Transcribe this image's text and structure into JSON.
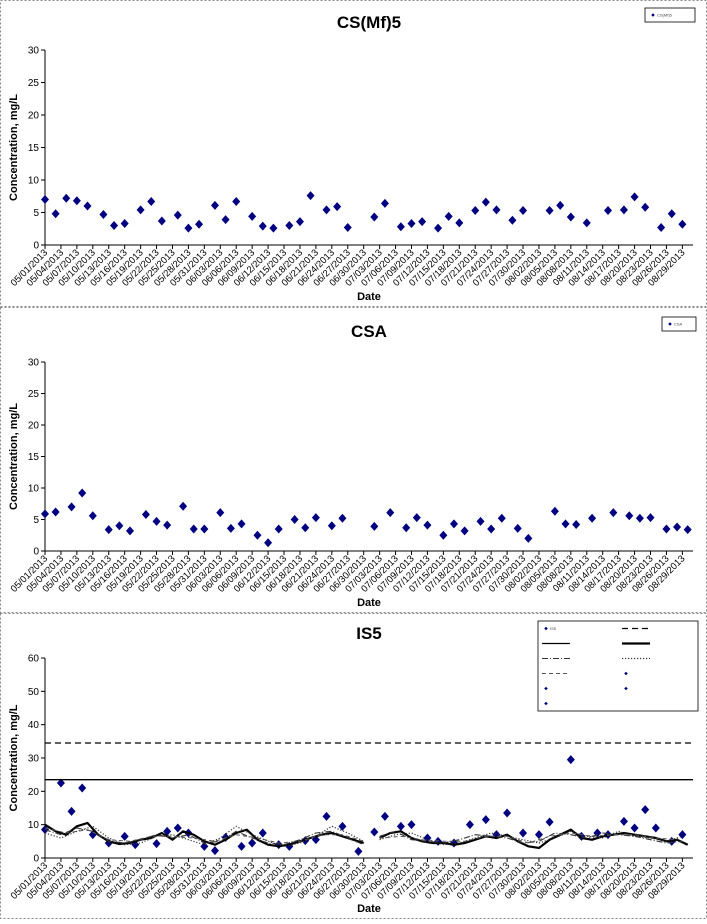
{
  "chart_data": [
    {
      "type": "scatter",
      "title": "CS(Mf)5",
      "xlabel": "Date",
      "ylabel": "Concentration, mg/L",
      "ylim": [
        0,
        30
      ],
      "yticks": [
        0,
        5,
        10,
        15,
        20,
        25,
        30
      ],
      "xlim": [
        "05/01/2013",
        "08/31/2013"
      ],
      "xticks": [
        "05/01/2013",
        "05/04/2013",
        "05/07/2013",
        "05/10/2013",
        "05/13/2013",
        "05/16/2013",
        "05/19/2013",
        "05/22/2013",
        "05/25/2013",
        "05/28/2013",
        "05/31/2013",
        "06/03/2013",
        "06/06/2013",
        "06/09/2013",
        "06/12/2013",
        "06/15/2013",
        "06/18/2013",
        "06/21/2013",
        "06/24/2013",
        "06/27/2013",
        "06/30/2013",
        "07/03/2013",
        "07/06/2013",
        "07/09/2013",
        "07/12/2013",
        "07/15/2013",
        "07/18/2013",
        "07/21/2013",
        "07/24/2013",
        "07/27/2013",
        "07/30/2013",
        "08/02/2013",
        "08/05/2013",
        "08/08/2013",
        "08/11/2013",
        "08/14/2013",
        "08/17/2013",
        "08/20/2013",
        "08/23/2013",
        "08/26/2013",
        "08/29/2013"
      ],
      "legend": {
        "position": "top-right",
        "entries": [
          "CS(Mf)5"
        ]
      },
      "series": [
        {
          "name": "CS(Mf)5",
          "marker": "diamond",
          "color": "#000080",
          "x": [
            "05/01/2013",
            "05/03/2013",
            "05/05/2013",
            "05/07/2013",
            "05/09/2013",
            "05/12/2013",
            "05/14/2013",
            "05/16/2013",
            "05/19/2013",
            "05/21/2013",
            "05/23/2013",
            "05/26/2013",
            "05/28/2013",
            "05/30/2013",
            "06/02/2013",
            "06/04/2013",
            "06/06/2013",
            "06/09/2013",
            "06/11/2013",
            "06/13/2013",
            "06/16/2013",
            "06/18/2013",
            "06/20/2013",
            "06/23/2013",
            "06/25/2013",
            "06/27/2013",
            "07/02/2013",
            "07/04/2013",
            "07/07/2013",
            "07/09/2013",
            "07/11/2013",
            "07/14/2013",
            "07/16/2013",
            "07/18/2013",
            "07/21/2013",
            "07/23/2013",
            "07/25/2013",
            "07/28/2013",
            "07/30/2013",
            "08/04/2013",
            "08/06/2013",
            "08/08/2013",
            "08/11/2013",
            "08/15/2013",
            "08/18/2013",
            "08/20/2013",
            "08/22/2013",
            "08/25/2013",
            "08/27/2013",
            "08/29/2013"
          ],
          "y": [
            7.0,
            4.8,
            7.2,
            6.8,
            6.0,
            4.7,
            3.0,
            3.3,
            5.4,
            6.7,
            3.7,
            4.6,
            2.6,
            3.2,
            6.1,
            3.9,
            6.7,
            4.4,
            2.9,
            2.6,
            3.0,
            3.6,
            7.6,
            5.4,
            5.9,
            2.7,
            4.3,
            6.4,
            2.8,
            3.3,
            3.6,
            2.6,
            4.4,
            3.4,
            5.3,
            6.6,
            5.4,
            3.8,
            5.3,
            5.3,
            6.1,
            4.3,
            3.4,
            5.3,
            5.4,
            7.4,
            5.8,
            2.7,
            4.8,
            3.2
          ]
        }
      ]
    },
    {
      "type": "scatter",
      "title": "CSA",
      "xlabel": "Date",
      "ylabel": "Concentration, mg/L",
      "ylim": [
        0,
        30
      ],
      "yticks": [
        0,
        5,
        10,
        15,
        20,
        25,
        30
      ],
      "xlim": [
        "05/01/2013",
        "08/31/2013"
      ],
      "xticks": [
        "05/01/2013",
        "05/04/2013",
        "05/07/2013",
        "05/10/2013",
        "05/13/2013",
        "05/16/2013",
        "05/19/2013",
        "05/22/2013",
        "05/25/2013",
        "05/28/2013",
        "05/31/2013",
        "06/03/2013",
        "06/06/2013",
        "06/09/2013",
        "06/12/2013",
        "06/15/2013",
        "06/18/2013",
        "06/21/2013",
        "06/24/2013",
        "06/27/2013",
        "06/30/2013",
        "07/03/2013",
        "07/06/2013",
        "07/09/2013",
        "07/12/2013",
        "07/15/2013",
        "07/18/2013",
        "07/21/2013",
        "07/24/2013",
        "07/27/2013",
        "07/30/2013",
        "08/02/2013",
        "08/05/2013",
        "08/08/2013",
        "08/11/2013",
        "08/14/2013",
        "08/17/2013",
        "08/20/2013",
        "08/23/2013",
        "08/26/2013",
        "08/29/2013"
      ],
      "legend": {
        "position": "top-right",
        "entries": [
          "CSA"
        ]
      },
      "series": [
        {
          "name": "CSA",
          "marker": "diamond",
          "color": "#000080",
          "x": [
            "05/01/2013",
            "05/03/2013",
            "05/06/2013",
            "05/08/2013",
            "05/10/2013",
            "05/13/2013",
            "05/15/2013",
            "05/17/2013",
            "05/20/2013",
            "05/22/2013",
            "05/24/2013",
            "05/27/2013",
            "05/29/2013",
            "05/31/2013",
            "06/03/2013",
            "06/05/2013",
            "06/07/2013",
            "06/10/2013",
            "06/12/2013",
            "06/14/2013",
            "06/17/2013",
            "06/19/2013",
            "06/21/2013",
            "06/24/2013",
            "06/26/2013",
            "07/02/2013",
            "07/05/2013",
            "07/08/2013",
            "07/10/2013",
            "07/12/2013",
            "07/15/2013",
            "07/17/2013",
            "07/19/2013",
            "07/22/2013",
            "07/24/2013",
            "07/26/2013",
            "07/29/2013",
            "07/31/2013",
            "08/05/2013",
            "08/07/2013",
            "08/09/2013",
            "08/12/2013",
            "08/16/2013",
            "08/19/2013",
            "08/21/2013",
            "08/23/2013",
            "08/26/2013",
            "08/28/2013",
            "08/30/2013"
          ],
          "y": [
            5.9,
            6.2,
            7.0,
            9.2,
            5.6,
            3.4,
            4.0,
            3.2,
            5.8,
            4.7,
            4.1,
            7.1,
            3.5,
            3.5,
            6.1,
            3.6,
            4.3,
            2.5,
            1.3,
            3.5,
            5.0,
            3.7,
            5.3,
            4.0,
            5.2,
            3.9,
            6.1,
            3.7,
            5.3,
            4.1,
            2.5,
            4.3,
            3.2,
            4.7,
            3.5,
            5.2,
            3.6,
            2.0,
            6.3,
            4.3,
            4.2,
            5.2,
            6.1,
            5.6,
            5.2,
            5.3,
            3.5,
            3.8,
            3.4
          ]
        }
      ]
    },
    {
      "type": "scatter",
      "title": "IS5",
      "xlabel": "Date",
      "ylabel": "Concentration, mg/L",
      "ylim": [
        0,
        60
      ],
      "yticks": [
        0,
        10,
        20,
        30,
        40,
        50,
        60
      ],
      "xlim": [
        "05/01/2013",
        "08/31/2013"
      ],
      "xticks": [
        "05/01/2013",
        "05/04/2013",
        "05/07/2013",
        "05/10/2013",
        "05/13/2013",
        "05/16/2013",
        "05/19/2013",
        "05/22/2013",
        "05/25/2013",
        "05/28/2013",
        "05/31/2013",
        "06/03/2013",
        "06/06/2013",
        "06/09/2013",
        "06/12/2013",
        "06/15/2013",
        "06/18/2013",
        "06/21/2013",
        "06/24/2013",
        "06/27/2013",
        "06/30/2013",
        "07/03/2013",
        "07/06/2013",
        "07/09/2013",
        "07/12/2013",
        "07/15/2013",
        "07/18/2013",
        "07/21/2013",
        "07/24/2013",
        "07/27/2013",
        "07/30/2013",
        "08/02/2013",
        "08/05/2013",
        "08/08/2013",
        "08/11/2013",
        "08/14/2013",
        "08/17/2013",
        "08/20/2013",
        "08/23/2013",
        "08/26/2013",
        "08/29/2013"
      ],
      "legend": {
        "position": "top-right",
        "columns": 2,
        "entries": [
          "IS5",
          "",
          "",
          "",
          "",
          "",
          "",
          "",
          "",
          "",
          ""
        ]
      },
      "series": [
        {
          "name": "IS5",
          "marker": "diamond",
          "color": "#000080",
          "x": [
            "05/01/2013",
            "05/04/2013",
            "05/06/2013",
            "05/08/2013",
            "05/10/2013",
            "05/13/2013",
            "05/16/2013",
            "05/18/2013",
            "05/22/2013",
            "05/24/2013",
            "05/26/2013",
            "05/28/2013",
            "05/31/2013",
            "06/02/2013",
            "06/04/2013",
            "06/07/2013",
            "06/09/2013",
            "06/11/2013",
            "06/14/2013",
            "06/16/2013",
            "06/19/2013",
            "06/21/2013",
            "06/23/2013",
            "06/26/2013",
            "06/29/2013",
            "07/02/2013",
            "07/04/2013",
            "07/07/2013",
            "07/09/2013",
            "07/12/2013",
            "07/14/2013",
            "07/17/2013",
            "07/20/2013",
            "07/23/2013",
            "07/25/2013",
            "07/27/2013",
            "07/30/2013",
            "08/02/2013",
            "08/04/2013",
            "08/08/2013",
            "08/10/2013",
            "08/13/2013",
            "08/15/2013",
            "08/18/2013",
            "08/20/2013",
            "08/22/2013",
            "08/24/2013",
            "08/27/2013",
            "08/29/2013"
          ],
          "y": [
            8.5,
            22.5,
            14.0,
            21.0,
            7.0,
            4.5,
            6.5,
            4.0,
            4.3,
            8.0,
            9.0,
            7.5,
            3.5,
            2.2,
            6.2,
            3.5,
            4.5,
            7.5,
            4.0,
            3.5,
            5.2,
            5.5,
            12.5,
            9.5,
            2.0,
            7.8,
            12.5,
            9.5,
            10.0,
            6.0,
            5.0,
            4.5,
            10.0,
            11.5,
            7.0,
            13.5,
            7.5,
            7.0,
            10.8,
            29.5,
            6.5,
            7.5,
            7.0,
            11.0,
            9.0,
            14.5,
            9.0,
            5.0,
            7.0
          ]
        },
        {
          "name": "",
          "style": "dashed",
          "color": "#000000",
          "constant": 34.5
        },
        {
          "name": "",
          "style": "solid",
          "color": "#000000",
          "constant": 23.5
        },
        {
          "name": "",
          "style": "solid-thick",
          "color": "#000000",
          "x": [
            "05/01/2013",
            "05/03/2013",
            "05/05/2013",
            "05/07/2013",
            "05/09/2013",
            "05/11/2013",
            "05/13/2013",
            "05/15/2013",
            "05/17/2013",
            "05/19/2013",
            "05/21/2013",
            "05/23/2013",
            "05/25/2013",
            "05/27/2013",
            "05/29/2013",
            "05/31/2013",
            "06/02/2013",
            "06/04/2013",
            "06/06/2013",
            "06/08/2013",
            "06/10/2013",
            "06/12/2013",
            "06/14/2013",
            "06/16/2013",
            "06/18/2013",
            "06/20/2013",
            "06/22/2013",
            "06/24/2013",
            "06/26/2013",
            "06/28/2013",
            "06/30/2013",
            null,
            "07/03/2013",
            "07/05/2013",
            "07/07/2013",
            "07/09/2013",
            "07/11/2013",
            "07/13/2013",
            "07/15/2013",
            "07/17/2013",
            "07/19/2013",
            "07/21/2013",
            "07/23/2013",
            "07/25/2013",
            "07/27/2013",
            "07/29/2013",
            "07/31/2013",
            "08/02/2013",
            "08/04/2013",
            "08/06/2013",
            "08/08/2013",
            "08/10/2013",
            "08/12/2013",
            "08/14/2013",
            "08/16/2013",
            "08/18/2013",
            "08/20/2013",
            "08/22/2013",
            "08/24/2013",
            "08/26/2013",
            "08/28/2013",
            "08/30/2013"
          ],
          "y": [
            10.0,
            8.0,
            7.0,
            9.5,
            10.5,
            7.0,
            5.0,
            4.2,
            4.5,
            5.5,
            6.0,
            7.5,
            5.5,
            8.0,
            7.0,
            5.0,
            4.0,
            5.5,
            7.5,
            8.5,
            5.5,
            4.0,
            3.5,
            4.0,
            5.0,
            6.0,
            7.0,
            7.5,
            6.5,
            5.5,
            4.5,
            null,
            6.0,
            7.5,
            8.0,
            6.0,
            5.0,
            4.5,
            4.5,
            4.0,
            4.5,
            5.5,
            6.5,
            6.0,
            7.0,
            5.0,
            3.5,
            3.0,
            5.5,
            7.0,
            8.5,
            6.0,
            5.5,
            6.5,
            7.0,
            7.5,
            7.0,
            6.5,
            6.0,
            5.0,
            5.5,
            4.0
          ]
        },
        {
          "name": "",
          "style": "dash-dot",
          "color": "#333333",
          "x": [
            "05/01/2013",
            "05/04/2013",
            "05/07/2013",
            "05/10/2013",
            "05/13/2013",
            "05/16/2013",
            "05/19/2013",
            "05/22/2013",
            "05/25/2013",
            "05/28/2013",
            "05/31/2013",
            "06/03/2013",
            "06/06/2013",
            "06/09/2013",
            "06/12/2013",
            "06/15/2013",
            "06/18/2013",
            "06/21/2013",
            "06/24/2013",
            "06/27/2013",
            "06/30/2013",
            null,
            "07/03/2013",
            "07/06/2013",
            "07/09/2013",
            "07/12/2013",
            "07/15/2013",
            "07/18/2013",
            "07/21/2013",
            "07/24/2013",
            "07/27/2013",
            "07/30/2013",
            "08/02/2013",
            "08/05/2013",
            "08/08/2013",
            "08/11/2013",
            "08/14/2013",
            "08/17/2013",
            "08/20/2013",
            "08/23/2013",
            "08/26/2013",
            "08/29/2013"
          ],
          "y": [
            8.5,
            7.0,
            9.0,
            8.0,
            5.0,
            4.5,
            5.5,
            7.0,
            6.0,
            7.0,
            4.5,
            5.0,
            8.0,
            6.0,
            4.5,
            4.0,
            5.5,
            7.5,
            8.0,
            6.0,
            4.0,
            null,
            6.5,
            8.0,
            5.5,
            5.0,
            4.5,
            5.5,
            7.0,
            6.5,
            6.0,
            4.5,
            5.0,
            7.5,
            7.0,
            6.0,
            7.5,
            7.0,
            6.5,
            5.5,
            4.5,
            5.0
          ]
        },
        {
          "name": "",
          "style": "dotted",
          "color": "#333333",
          "x": [
            "05/01/2013",
            "05/04/2013",
            "05/07/2013",
            "05/10/2013",
            "05/13/2013",
            "05/16/2013",
            "05/19/2013",
            "05/22/2013",
            "05/25/2013",
            "05/28/2013",
            "05/31/2013",
            "06/03/2013",
            "06/06/2013",
            "06/09/2013",
            "06/12/2013",
            "06/15/2013",
            "06/18/2013",
            "06/21/2013",
            "06/24/2013",
            "06/27/2013",
            "06/30/2013",
            null,
            "07/03/2013",
            "07/06/2013",
            "07/09/2013",
            "07/12/2013",
            "07/15/2013",
            "07/18/2013",
            "07/21/2013",
            "07/24/2013",
            "07/27/2013",
            "07/30/2013",
            "08/02/2013",
            "08/05/2013",
            "08/08/2013",
            "08/11/2013",
            "08/14/2013",
            "08/17/2013",
            "08/20/2013",
            "08/23/2013",
            "08/26/2013",
            "08/29/2013"
          ],
          "y": [
            7.5,
            6.0,
            8.0,
            9.5,
            6.0,
            4.0,
            4.5,
            6.5,
            7.0,
            5.5,
            4.0,
            6.0,
            9.5,
            7.0,
            5.0,
            3.5,
            4.5,
            6.5,
            9.5,
            7.5,
            5.0,
            null,
            5.5,
            7.0,
            7.5,
            5.5,
            4.0,
            4.5,
            6.0,
            7.5,
            6.5,
            5.5,
            4.5,
            6.0,
            8.0,
            6.5,
            6.0,
            8.0,
            6.5,
            6.0,
            5.0,
            6.5
          ]
        },
        {
          "name": "",
          "style": "dashed-light",
          "color": "#555555",
          "x": [
            "05/01/2013",
            "05/05/2013",
            "05/09/2013",
            "05/13/2013",
            "05/17/2013",
            "05/21/2013",
            "05/25/2013",
            "05/29/2013",
            "06/02/2013",
            "06/06/2013",
            "06/10/2013",
            "06/14/2013",
            "06/18/2013",
            "06/22/2013",
            "06/26/2013",
            "06/30/2013",
            null,
            "07/03/2013",
            "07/07/2013",
            "07/11/2013",
            "07/15/2013",
            "07/19/2013",
            "07/23/2013",
            "07/27/2013",
            "07/31/2013",
            "08/04/2013",
            "08/08/2013",
            "08/12/2013",
            "08/16/2013",
            "08/20/2013",
            "08/24/2013",
            "08/28/2013"
          ],
          "y": [
            9.0,
            7.5,
            8.5,
            5.5,
            5.0,
            6.5,
            6.5,
            6.0,
            5.0,
            7.0,
            6.0,
            4.5,
            5.0,
            7.0,
            7.0,
            5.0,
            null,
            6.0,
            6.5,
            5.5,
            5.0,
            5.0,
            6.5,
            6.5,
            4.5,
            6.5,
            7.5,
            6.5,
            7.0,
            7.0,
            6.0,
            5.5
          ]
        }
      ]
    }
  ]
}
